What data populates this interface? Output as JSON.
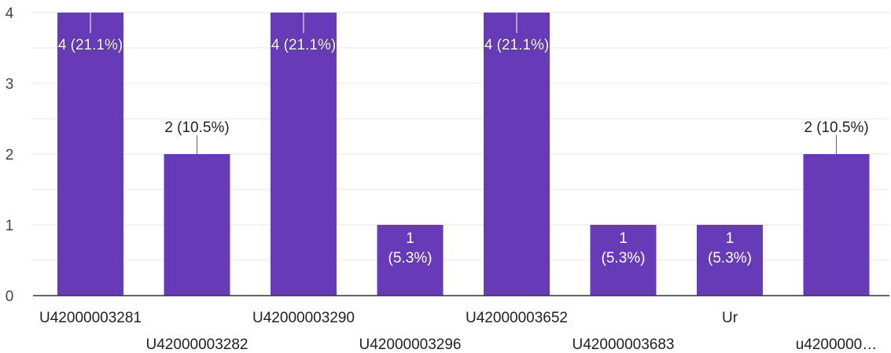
{
  "chart_data": {
    "type": "bar",
    "categories": [
      "U42000003281",
      "U42000003282",
      "U42000003290",
      "U42000003296",
      "U42000003652",
      "U42000003683",
      "Ur",
      "u4200000…"
    ],
    "values": [
      4,
      2,
      4,
      1,
      4,
      1,
      1,
      2
    ],
    "data_labels": [
      "4 (21.1%)",
      "2 (10.5%)",
      "4 (21.1%)",
      "1 (5.3%)",
      "4 (21.1%)",
      "1 (5.3%)",
      "1 (5.3%)",
      "2 (10.5%)"
    ],
    "yticks": [
      0,
      1,
      2,
      3,
      4
    ],
    "ylim": [
      0,
      4
    ],
    "grid": true,
    "title": "",
    "xlabel": "",
    "ylabel": "",
    "colors": {
      "bar": "#673ab7",
      "label_outside": "#222222",
      "label_inside": "#ffffff"
    }
  }
}
